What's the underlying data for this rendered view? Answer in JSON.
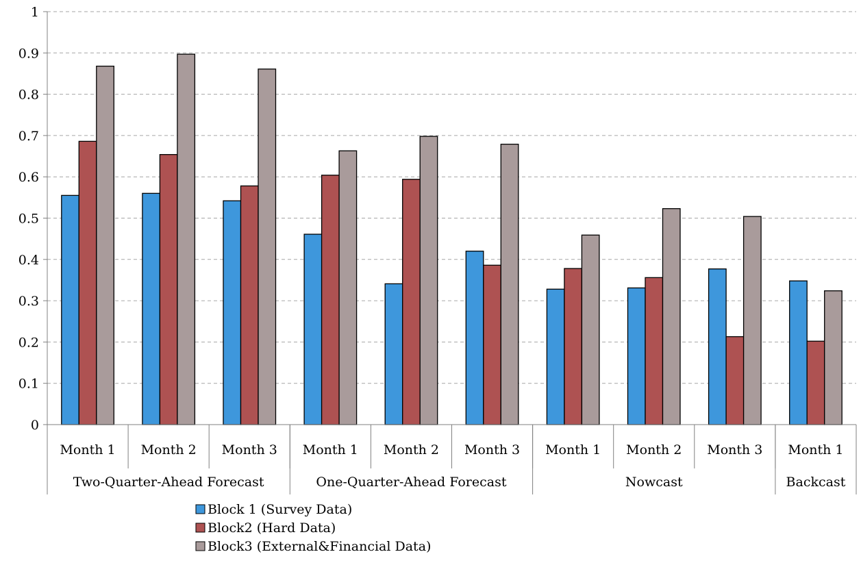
{
  "chart_data": {
    "type": "bar",
    "title": "",
    "xlabel": "",
    "ylabel": "",
    "ylim": [
      0,
      1
    ],
    "yticks": [
      "0",
      "0.1",
      "0.2",
      "0.3",
      "0.4",
      "0.5",
      "0.6",
      "0.7",
      "0.8",
      "0.9",
      "1"
    ],
    "grid": true,
    "legend_position": "bottom",
    "groups": [
      {
        "name": "Two-Quarter-Ahead Forecast",
        "span": 3
      },
      {
        "name": "One-Quarter-Ahead Forecast",
        "span": 3
      },
      {
        "name": "Nowcast",
        "span": 3
      },
      {
        "name": "Backcast",
        "span": 1
      }
    ],
    "categories": [
      "Month 1",
      "Month 2",
      "Month 3",
      "Month 1",
      "Month 2",
      "Month 3",
      "Month 1",
      "Month 2",
      "Month 3",
      "Month 1"
    ],
    "series": [
      {
        "name": "Block 1 (Survey Data)",
        "color": "#3e97dc",
        "values": [
          0.555,
          0.56,
          0.542,
          0.461,
          0.341,
          0.42,
          0.328,
          0.331,
          0.377,
          0.348
        ]
      },
      {
        "name": "Block2 (Hard Data)",
        "color": "#ae5252",
        "values": [
          0.686,
          0.654,
          0.578,
          0.604,
          0.594,
          0.386,
          0.378,
          0.356,
          0.213,
          0.202
        ]
      },
      {
        "name": "Block3 (External&Financial Data)",
        "color": "#a99b9b",
        "values": [
          0.868,
          0.897,
          0.861,
          0.663,
          0.698,
          0.679,
          0.459,
          0.523,
          0.504,
          0.324
        ]
      }
    ]
  }
}
